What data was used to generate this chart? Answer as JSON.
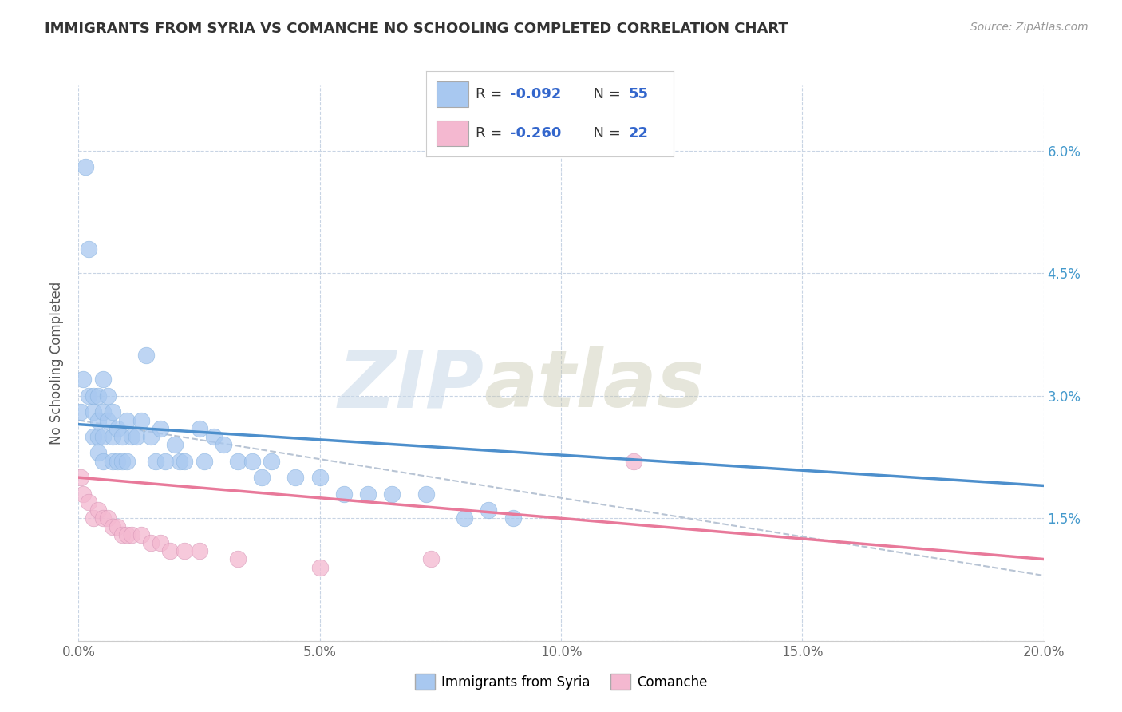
{
  "title": "IMMIGRANTS FROM SYRIA VS COMANCHE NO SCHOOLING COMPLETED CORRELATION CHART",
  "source_text": "Source: ZipAtlas.com",
  "ylabel": "No Schooling Completed",
  "watermark_zip": "ZIP",
  "watermark_atlas": "atlas",
  "xlim": [
    0.0,
    0.2
  ],
  "ylim": [
    0.0,
    0.068
  ],
  "legend_r1": "-0.092",
  "legend_n1": "55",
  "legend_r2": "-0.260",
  "legend_n2": "22",
  "color_syria": "#a8c8f0",
  "color_comanche": "#f4b8d0",
  "color_syria_line": "#4d8fcc",
  "color_comanche_line": "#e8799a",
  "color_dashed": "#b8c4d4",
  "background": "#ffffff",
  "grid_color": "#c8d4e4",
  "syria_x": [
    0.0005,
    0.001,
    0.0015,
    0.002,
    0.002,
    0.003,
    0.003,
    0.003,
    0.004,
    0.004,
    0.004,
    0.004,
    0.005,
    0.005,
    0.005,
    0.005,
    0.006,
    0.006,
    0.007,
    0.007,
    0.007,
    0.008,
    0.008,
    0.009,
    0.009,
    0.01,
    0.01,
    0.011,
    0.012,
    0.013,
    0.014,
    0.015,
    0.016,
    0.017,
    0.018,
    0.02,
    0.021,
    0.022,
    0.025,
    0.026,
    0.028,
    0.03,
    0.033,
    0.036,
    0.038,
    0.04,
    0.045,
    0.05,
    0.055,
    0.06,
    0.065,
    0.072,
    0.08,
    0.085,
    0.09
  ],
  "syria_y": [
    0.028,
    0.032,
    0.058,
    0.048,
    0.03,
    0.03,
    0.028,
    0.025,
    0.03,
    0.027,
    0.025,
    0.023,
    0.032,
    0.028,
    0.025,
    0.022,
    0.03,
    0.027,
    0.028,
    0.025,
    0.022,
    0.026,
    0.022,
    0.025,
    0.022,
    0.027,
    0.022,
    0.025,
    0.025,
    0.027,
    0.035,
    0.025,
    0.022,
    0.026,
    0.022,
    0.024,
    0.022,
    0.022,
    0.026,
    0.022,
    0.025,
    0.024,
    0.022,
    0.022,
    0.02,
    0.022,
    0.02,
    0.02,
    0.018,
    0.018,
    0.018,
    0.018,
    0.015,
    0.016,
    0.015
  ],
  "comanche_x": [
    0.0005,
    0.001,
    0.002,
    0.003,
    0.004,
    0.005,
    0.006,
    0.007,
    0.008,
    0.009,
    0.01,
    0.011,
    0.013,
    0.015,
    0.017,
    0.019,
    0.022,
    0.025,
    0.033,
    0.05,
    0.073,
    0.115
  ],
  "comanche_y": [
    0.02,
    0.018,
    0.017,
    0.015,
    0.016,
    0.015,
    0.015,
    0.014,
    0.014,
    0.013,
    0.013,
    0.013,
    0.013,
    0.012,
    0.012,
    0.011,
    0.011,
    0.011,
    0.01,
    0.009,
    0.01,
    0.022
  ],
  "syria_line_x": [
    0.0,
    0.2
  ],
  "syria_line_y": [
    0.0265,
    0.019
  ],
  "comanche_line_x": [
    0.0,
    0.2
  ],
  "comanche_line_y": [
    0.02,
    0.01
  ],
  "dashed_line_x": [
    0.0,
    0.2
  ],
  "dashed_line_y": [
    0.027,
    0.008
  ]
}
